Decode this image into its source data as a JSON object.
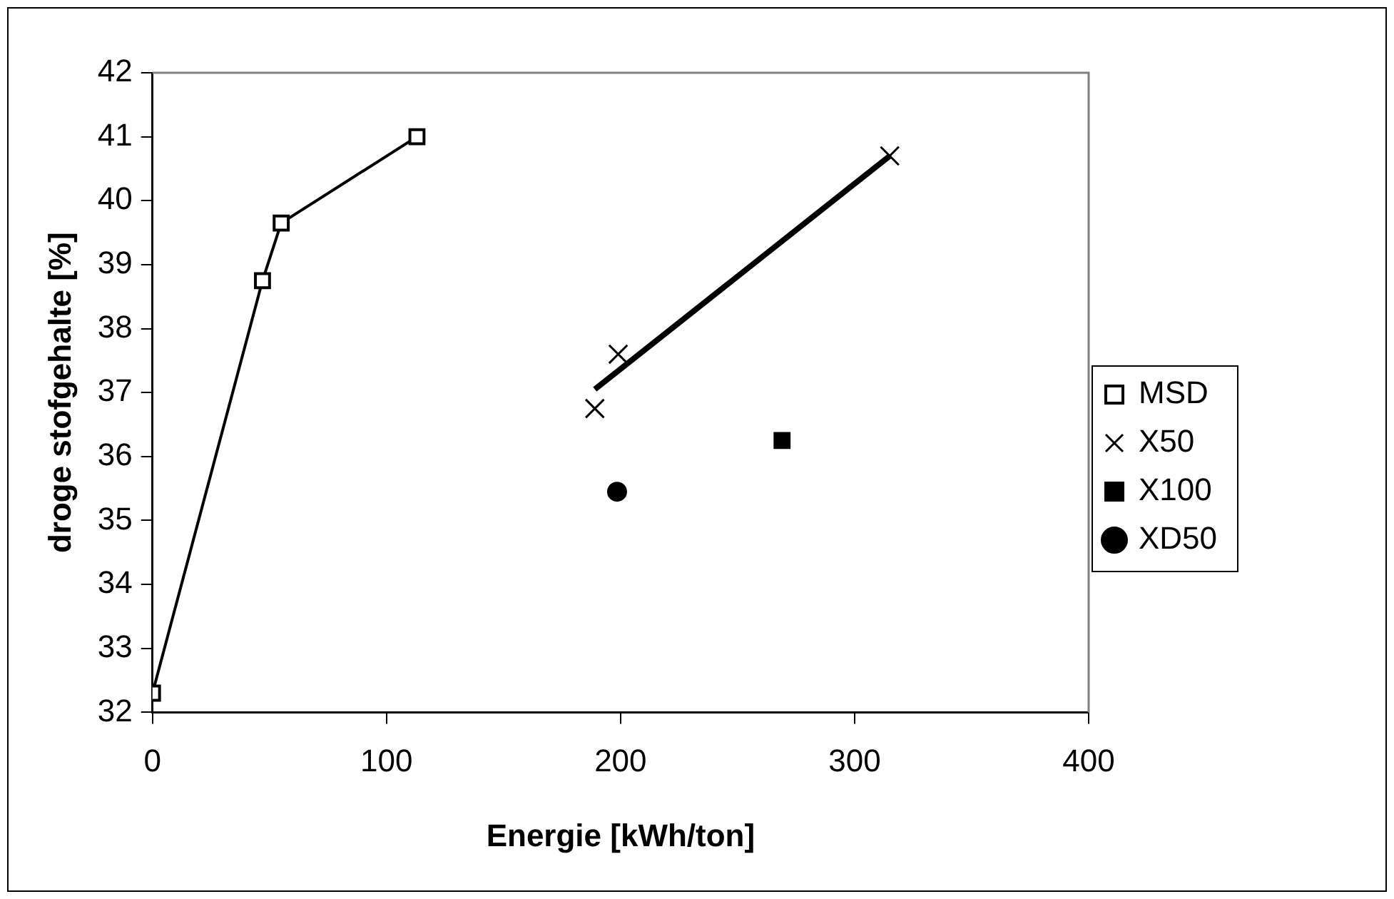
{
  "chart_data": {
    "type": "scatter",
    "xlabel": "Energie [kWh/ton]",
    "ylabel": "droge stofgehalte [%]",
    "xlim": [
      0,
      400
    ],
    "xticks": [
      0,
      100,
      200,
      300,
      400
    ],
    "ylim": [
      32,
      42
    ],
    "yticks": [
      32,
      33,
      34,
      35,
      36,
      37,
      38,
      39,
      40,
      41,
      42
    ],
    "grid": false,
    "legend": "right",
    "series": [
      {
        "name": "MSD",
        "type": "line",
        "marker": "square",
        "color": "#000000",
        "x": [
          0,
          47,
          55,
          113
        ],
        "values": [
          32.3,
          38.75,
          39.65,
          41.0
        ]
      },
      {
        "name": "X50",
        "type": "scatter",
        "marker": "cross",
        "color": "#000000",
        "x": [
          189,
          199,
          315
        ],
        "values": [
          36.75,
          37.6,
          40.7
        ]
      },
      {
        "name": "X100",
        "type": "scatter",
        "marker": "square",
        "color": "#000000",
        "x": [
          269
        ],
        "values": [
          36.25
        ]
      },
      {
        "name": "XD50",
        "type": "scatter",
        "marker": "circle",
        "color": "#000000",
        "x": [
          198.5
        ],
        "values": [
          35.45
        ]
      },
      {
        "type": "line",
        "marker": "none",
        "color": "#000000",
        "x": [
          189,
          315
        ],
        "values": [
          37.05,
          40.7
        ]
      }
    ]
  }
}
